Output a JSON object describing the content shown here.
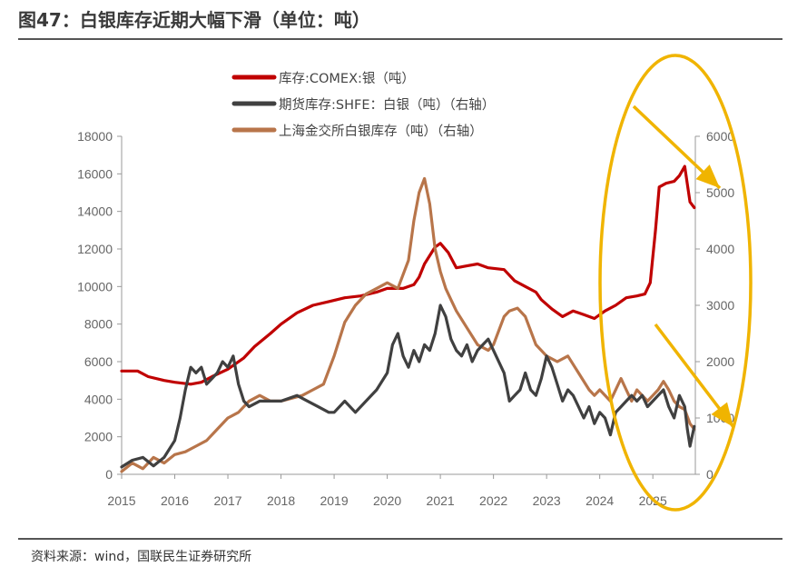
{
  "page": {
    "title": "图47：白银库存近期大幅下滑（单位：吨）",
    "source": "资料来源：wind，国联民生证券研究所"
  },
  "colors": {
    "comex": "#c00000",
    "shfe": "#404040",
    "sge": "#b8754a",
    "highlight": "#f0b400",
    "axis": "#999999"
  },
  "chart_data": {
    "type": "line",
    "title": "白银库存近期大幅下滑（单位：吨）",
    "x_ticks": [
      "2015",
      "2016",
      "2017",
      "2018",
      "2019",
      "2020",
      "2021",
      "2022",
      "2023",
      "2024",
      "2025"
    ],
    "xlim": [
      2015,
      2025.8
    ],
    "y_left": {
      "ticks": [
        "18000",
        "16000",
        "14000",
        "12000",
        "10000",
        "8000",
        "6000",
        "4000",
        "2000",
        "0"
      ],
      "ylim": [
        0,
        18000
      ]
    },
    "y_right": {
      "ticks": [
        "6000",
        "5000",
        "4000",
        "3000",
        "2000",
        "1000",
        "0"
      ],
      "ylim": [
        0,
        6000
      ]
    },
    "legend_position": "top-center",
    "series": [
      {
        "name": "库存:COMEX:银（吨）",
        "axis": "left",
        "color_key": "comex",
        "points": [
          [
            2015,
            5500
          ],
          [
            2015.3,
            5500
          ],
          [
            2015.5,
            5200
          ],
          [
            2015.8,
            5000
          ],
          [
            2016.0,
            4900
          ],
          [
            2016.3,
            4800
          ],
          [
            2016.5,
            4900
          ],
          [
            2016.7,
            5200
          ],
          [
            2017.0,
            5600
          ],
          [
            2017.3,
            6200
          ],
          [
            2017.5,
            6800
          ],
          [
            2017.8,
            7500
          ],
          [
            2018.0,
            8000
          ],
          [
            2018.3,
            8600
          ],
          [
            2018.6,
            9000
          ],
          [
            2018.9,
            9200
          ],
          [
            2019.2,
            9400
          ],
          [
            2019.5,
            9500
          ],
          [
            2019.8,
            9700
          ],
          [
            2020.0,
            9900
          ],
          [
            2020.3,
            9900
          ],
          [
            2020.5,
            10100
          ],
          [
            2020.6,
            10500
          ],
          [
            2020.7,
            11200
          ],
          [
            2020.9,
            12100
          ],
          [
            2021.0,
            12300
          ],
          [
            2021.15,
            11800
          ],
          [
            2021.3,
            11000
          ],
          [
            2021.5,
            11100
          ],
          [
            2021.7,
            11200
          ],
          [
            2021.9,
            11000
          ],
          [
            2022.2,
            10900
          ],
          [
            2022.4,
            10300
          ],
          [
            2022.6,
            10000
          ],
          [
            2022.8,
            9700
          ],
          [
            2022.9,
            9300
          ],
          [
            2023.1,
            8800
          ],
          [
            2023.3,
            8400
          ],
          [
            2023.5,
            8700
          ],
          [
            2023.7,
            8500
          ],
          [
            2023.9,
            8300
          ],
          [
            2024.1,
            8700
          ],
          [
            2024.3,
            9000
          ],
          [
            2024.5,
            9400
          ],
          [
            2024.7,
            9500
          ],
          [
            2024.85,
            9600
          ],
          [
            2024.95,
            10200
          ],
          [
            2025.05,
            13000
          ],
          [
            2025.12,
            15300
          ],
          [
            2025.25,
            15500
          ],
          [
            2025.4,
            15600
          ],
          [
            2025.5,
            15900
          ],
          [
            2025.6,
            16400
          ],
          [
            2025.7,
            14500
          ],
          [
            2025.78,
            14200
          ]
        ]
      },
      {
        "name": "期货库存:SHFE：白银（吨）（右轴）",
        "axis": "right",
        "color_key": "shfe",
        "points": [
          [
            2015,
            130
          ],
          [
            2015.2,
            250
          ],
          [
            2015.4,
            300
          ],
          [
            2015.6,
            150
          ],
          [
            2015.8,
            300
          ],
          [
            2016.0,
            600
          ],
          [
            2016.1,
            1000
          ],
          [
            2016.2,
            1500
          ],
          [
            2016.3,
            1900
          ],
          [
            2016.4,
            1800
          ],
          [
            2016.5,
            1900
          ],
          [
            2016.6,
            1600
          ],
          [
            2016.7,
            1700
          ],
          [
            2016.8,
            1800
          ],
          [
            2016.9,
            2000
          ],
          [
            2017.0,
            1900
          ],
          [
            2017.1,
            2100
          ],
          [
            2017.2,
            1600
          ],
          [
            2017.3,
            1300
          ],
          [
            2017.4,
            1200
          ],
          [
            2017.6,
            1300
          ],
          [
            2017.8,
            1300
          ],
          [
            2018.0,
            1300
          ],
          [
            2018.3,
            1400
          ],
          [
            2018.5,
            1300
          ],
          [
            2018.7,
            1200
          ],
          [
            2018.9,
            1100
          ],
          [
            2019.0,
            1100
          ],
          [
            2019.2,
            1300
          ],
          [
            2019.4,
            1100
          ],
          [
            2019.6,
            1300
          ],
          [
            2019.8,
            1500
          ],
          [
            2020.0,
            1800
          ],
          [
            2020.1,
            2300
          ],
          [
            2020.2,
            2500
          ],
          [
            2020.3,
            2100
          ],
          [
            2020.4,
            1900
          ],
          [
            2020.5,
            2200
          ],
          [
            2020.6,
            2000
          ],
          [
            2020.7,
            2300
          ],
          [
            2020.8,
            2200
          ],
          [
            2020.9,
            2500
          ],
          [
            2021.0,
            3000
          ],
          [
            2021.1,
            2800
          ],
          [
            2021.2,
            2400
          ],
          [
            2021.3,
            2200
          ],
          [
            2021.4,
            2100
          ],
          [
            2021.5,
            2300
          ],
          [
            2021.6,
            2000
          ],
          [
            2021.7,
            2200
          ],
          [
            2021.8,
            2300
          ],
          [
            2021.9,
            2400
          ],
          [
            2022.0,
            2200
          ],
          [
            2022.2,
            1800
          ],
          [
            2022.3,
            1300
          ],
          [
            2022.4,
            1400
          ],
          [
            2022.5,
            1500
          ],
          [
            2022.6,
            1800
          ],
          [
            2022.7,
            1500
          ],
          [
            2022.8,
            1400
          ],
          [
            2022.9,
            1700
          ],
          [
            2023.0,
            2100
          ],
          [
            2023.1,
            1900
          ],
          [
            2023.2,
            1600
          ],
          [
            2023.3,
            1300
          ],
          [
            2023.4,
            1500
          ],
          [
            2023.5,
            1400
          ],
          [
            2023.6,
            1200
          ],
          [
            2023.7,
            1000
          ],
          [
            2023.8,
            1200
          ],
          [
            2023.9,
            900
          ],
          [
            2024.0,
            1100
          ],
          [
            2024.1,
            1000
          ],
          [
            2024.2,
            700
          ],
          [
            2024.3,
            1100
          ],
          [
            2024.4,
            1200
          ],
          [
            2024.5,
            1300
          ],
          [
            2024.6,
            1400
          ],
          [
            2024.7,
            1300
          ],
          [
            2024.8,
            1400
          ],
          [
            2024.9,
            1200
          ],
          [
            2025.0,
            1300
          ],
          [
            2025.1,
            1400
          ],
          [
            2025.2,
            1500
          ],
          [
            2025.3,
            1200
          ],
          [
            2025.4,
            1000
          ],
          [
            2025.5,
            1400
          ],
          [
            2025.6,
            1200
          ],
          [
            2025.65,
            800
          ],
          [
            2025.7,
            500
          ],
          [
            2025.78,
            850
          ]
        ]
      },
      {
        "name": "上海金交所白银库存（吨）（右轴）",
        "axis": "right",
        "color_key": "sge",
        "points": [
          [
            2015,
            50
          ],
          [
            2015.2,
            200
          ],
          [
            2015.4,
            100
          ],
          [
            2015.6,
            300
          ],
          [
            2015.8,
            200
          ],
          [
            2016.0,
            350
          ],
          [
            2016.2,
            400
          ],
          [
            2016.4,
            500
          ],
          [
            2016.6,
            600
          ],
          [
            2016.8,
            800
          ],
          [
            2017.0,
            1000
          ],
          [
            2017.2,
            1100
          ],
          [
            2017.4,
            1300
          ],
          [
            2017.6,
            1400
          ],
          [
            2017.8,
            1300
          ],
          [
            2018.0,
            1300
          ],
          [
            2018.2,
            1350
          ],
          [
            2018.4,
            1400
          ],
          [
            2018.6,
            1500
          ],
          [
            2018.8,
            1600
          ],
          [
            2019.0,
            2100
          ],
          [
            2019.2,
            2700
          ],
          [
            2019.4,
            3000
          ],
          [
            2019.6,
            3200
          ],
          [
            2019.8,
            3300
          ],
          [
            2020.0,
            3400
          ],
          [
            2020.2,
            3300
          ],
          [
            2020.4,
            3800
          ],
          [
            2020.5,
            4500
          ],
          [
            2020.6,
            5000
          ],
          [
            2020.7,
            5250
          ],
          [
            2020.8,
            4800
          ],
          [
            2020.9,
            4000
          ],
          [
            2021.0,
            3600
          ],
          [
            2021.1,
            3300
          ],
          [
            2021.2,
            3100
          ],
          [
            2021.3,
            2900
          ],
          [
            2021.5,
            2600
          ],
          [
            2021.7,
            2300
          ],
          [
            2021.9,
            2200
          ],
          [
            2022.0,
            2300
          ],
          [
            2022.2,
            2800
          ],
          [
            2022.3,
            2900
          ],
          [
            2022.45,
            2950
          ],
          [
            2022.6,
            2800
          ],
          [
            2022.8,
            2300
          ],
          [
            2023.0,
            2100
          ],
          [
            2023.2,
            2000
          ],
          [
            2023.4,
            2100
          ],
          [
            2023.6,
            1800
          ],
          [
            2023.8,
            1500
          ],
          [
            2023.9,
            1400
          ],
          [
            2024.0,
            1500
          ],
          [
            2024.2,
            1300
          ],
          [
            2024.4,
            1700
          ],
          [
            2024.5,
            1500
          ],
          [
            2024.6,
            1300
          ],
          [
            2024.7,
            1500
          ],
          [
            2024.8,
            1400
          ],
          [
            2024.9,
            1300
          ],
          [
            2025.0,
            1400
          ],
          [
            2025.1,
            1500
          ],
          [
            2025.2,
            1650
          ],
          [
            2025.3,
            1500
          ],
          [
            2025.4,
            1300
          ],
          [
            2025.5,
            1200
          ],
          [
            2025.6,
            1150
          ],
          [
            2025.7,
            900
          ],
          [
            2025.78,
            800
          ]
        ]
      }
    ]
  }
}
